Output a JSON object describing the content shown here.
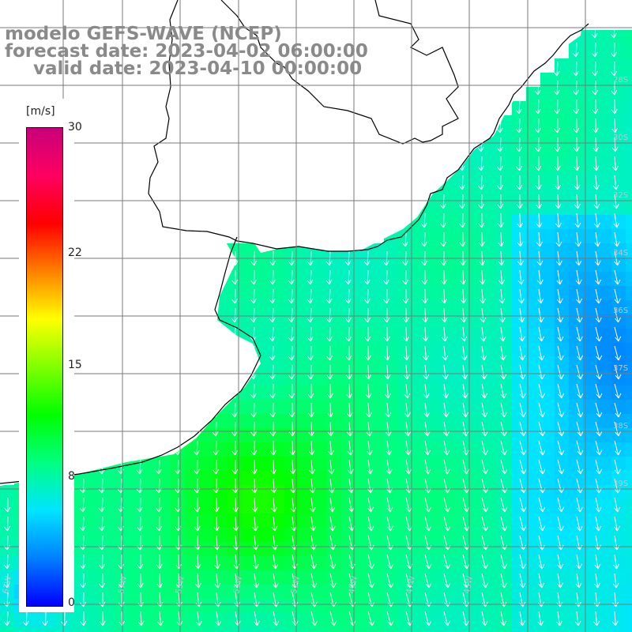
{
  "title": {
    "line1": "modelo GEFS-WAVE (NCEP)",
    "line2": "forecast date: 2023-04-02 06:00:00",
    "line3": "valid date: 2023-04-10 00:00:00"
  },
  "colorbar": {
    "unit": "[m/s]",
    "min": 0,
    "max": 30,
    "ticks": [
      "30",
      "22",
      "15",
      "8",
      "0"
    ],
    "tick_values": [
      30,
      22,
      15,
      8,
      0
    ],
    "colors": [
      "#0000ff",
      "#0080ff",
      "#00e5ff",
      "#00ff80",
      "#00ff00",
      "#80ff00",
      "#ffff00",
      "#ff8000",
      "#ff0000",
      "#ff0060",
      "#c8007a"
    ]
  },
  "map": {
    "lat_labels": [
      "28S",
      "30S",
      "32S",
      "34S",
      "36S",
      "37S",
      "38S",
      "39S"
    ],
    "lon_labels": [
      "61W",
      "59W",
      "57W",
      "55W",
      "53W",
      "51W",
      "49W",
      "47W",
      "45W"
    ],
    "wind_direction": "southward",
    "field_colors": {
      "land": "#ffffff",
      "coast": "#000000",
      "grid": "#7a7a7a",
      "arrow": "#ffffff"
    }
  }
}
